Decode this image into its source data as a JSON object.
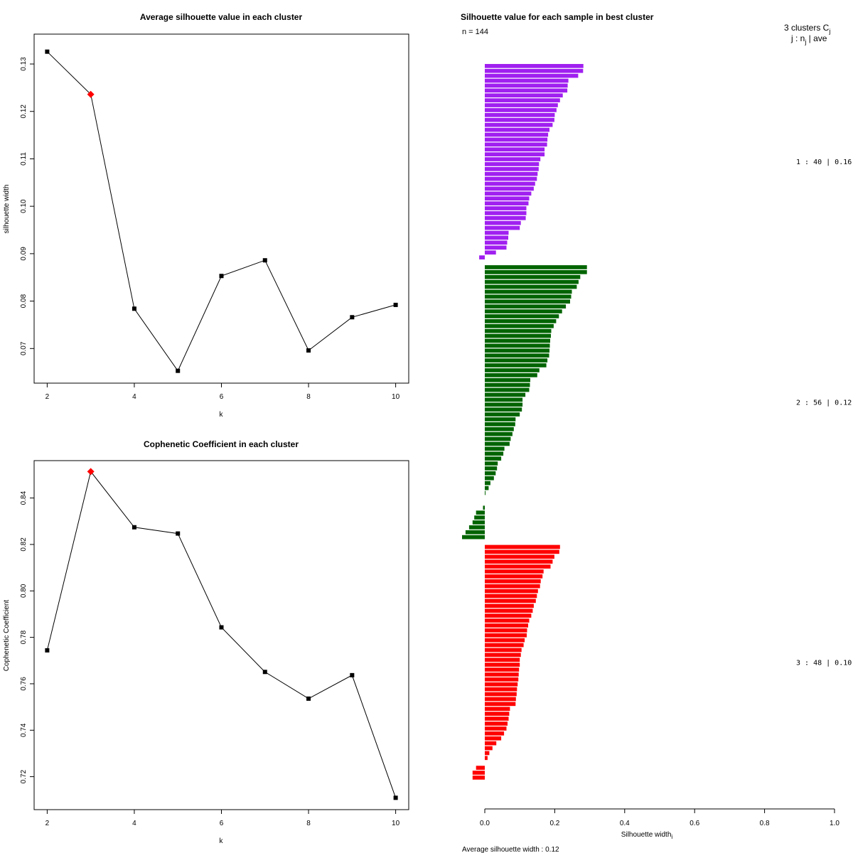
{
  "chart_data": [
    {
      "type": "line",
      "title": "Average silhouette value in each cluster",
      "xlabel": "k",
      "ylabel": "silhouette width",
      "x": [
        2,
        3,
        4,
        5,
        6,
        7,
        8,
        9,
        10
      ],
      "values": [
        0.1326,
        0.1236,
        0.0784,
        0.0653,
        0.0853,
        0.0886,
        0.0696,
        0.0766,
        0.0792
      ],
      "highlight_index": 1,
      "highlight_color": "#ff0000",
      "xlim": [
        1.7,
        10.3
      ],
      "ylim": [
        0.0627,
        0.1363
      ],
      "xticks": [
        2,
        4,
        6,
        8,
        10
      ],
      "yticks": [
        0.07,
        0.08,
        0.09,
        0.1,
        0.11,
        0.12,
        0.13
      ],
      "ytick_labels": [
        "0.07",
        "0.08",
        "0.09",
        "0.10",
        "0.11",
        "0.12",
        "0.13"
      ],
      "grid": false
    },
    {
      "type": "line",
      "title": "Cophenetic Coefficient in each cluster",
      "xlabel": "k",
      "ylabel": "Cophenetic Coefficient",
      "x": [
        2,
        3,
        4,
        5,
        6,
        7,
        8,
        9,
        10
      ],
      "values": [
        0.7744,
        0.8514,
        0.8274,
        0.8247,
        0.7843,
        0.7651,
        0.7536,
        0.7637,
        0.7109
      ],
      "highlight_index": 1,
      "highlight_color": "#ff0000",
      "xlim": [
        1.7,
        10.3
      ],
      "ylim": [
        0.7058,
        0.8561
      ],
      "xticks": [
        2,
        4,
        6,
        8,
        10
      ],
      "yticks": [
        0.72,
        0.74,
        0.76,
        0.78,
        0.8,
        0.82,
        0.84
      ],
      "ytick_labels": [
        "0.72",
        "0.74",
        "0.76",
        "0.78",
        "0.80",
        "0.82",
        "0.84"
      ],
      "grid": false
    },
    {
      "type": "bar",
      "orientation": "horizontal",
      "title": "Silhouette value for each sample in best cluster",
      "n_label": "n = 144",
      "xlabel": "Silhouette width",
      "xlabel_sub": "i",
      "xlim": [
        0,
        1
      ],
      "xticks": [
        0.0,
        0.2,
        0.4,
        0.6,
        0.8,
        1.0
      ],
      "xtick_labels": [
        "0.0",
        "0.2",
        "0.4",
        "0.6",
        "0.8",
        "1.0"
      ],
      "footer": "Average silhouette width :  0.12",
      "legend_header": "3  clusters  C",
      "legend_header_sub": "j",
      "legend_subheader": "j :  n",
      "legend_subheader_tail": " | ave",
      "clusters": [
        {
          "id": 1,
          "color": "#a020f0",
          "label": "1 :  40  |  0.16",
          "values": [
            0.282,
            0.281,
            0.267,
            0.239,
            0.237,
            0.236,
            0.223,
            0.215,
            0.209,
            0.205,
            0.2,
            0.199,
            0.194,
            0.185,
            0.181,
            0.179,
            0.178,
            0.171,
            0.171,
            0.159,
            0.155,
            0.154,
            0.151,
            0.149,
            0.144,
            0.14,
            0.133,
            0.127,
            0.125,
            0.119,
            0.119,
            0.117,
            0.103,
            0.1,
            0.068,
            0.067,
            0.064,
            0.062,
            0.032,
            -0.016
          ]
        },
        {
          "id": 2,
          "color": "#006400",
          "label": "2 :  56  |  0.12",
          "values": [
            0.292,
            0.292,
            0.273,
            0.268,
            0.263,
            0.249,
            0.247,
            0.244,
            0.232,
            0.221,
            0.212,
            0.204,
            0.197,
            0.19,
            0.189,
            0.187,
            0.186,
            0.185,
            0.184,
            0.179,
            0.176,
            0.156,
            0.15,
            0.13,
            0.129,
            0.127,
            0.116,
            0.108,
            0.108,
            0.106,
            0.1,
            0.088,
            0.087,
            0.083,
            0.079,
            0.074,
            0.071,
            0.056,
            0.053,
            0.047,
            0.037,
            0.035,
            0.031,
            0.026,
            0.016,
            0.011,
            0.002,
            0.0,
            0.0,
            -0.005,
            -0.025,
            -0.03,
            -0.035,
            -0.045,
            -0.055,
            -0.065
          ]
        },
        {
          "id": 3,
          "color": "#ff0000",
          "label": "3 :  48  |  0.10",
          "values": [
            0.215,
            0.213,
            0.199,
            0.194,
            0.188,
            0.168,
            0.165,
            0.16,
            0.158,
            0.152,
            0.149,
            0.146,
            0.14,
            0.137,
            0.133,
            0.127,
            0.124,
            0.121,
            0.12,
            0.114,
            0.111,
            0.105,
            0.103,
            0.1,
            0.1,
            0.098,
            0.097,
            0.096,
            0.094,
            0.092,
            0.091,
            0.089,
            0.088,
            0.072,
            0.07,
            0.068,
            0.065,
            0.062,
            0.055,
            0.047,
            0.033,
            0.022,
            0.013,
            0.008,
            0.0,
            -0.025,
            -0.035,
            -0.035
          ]
        }
      ]
    }
  ]
}
